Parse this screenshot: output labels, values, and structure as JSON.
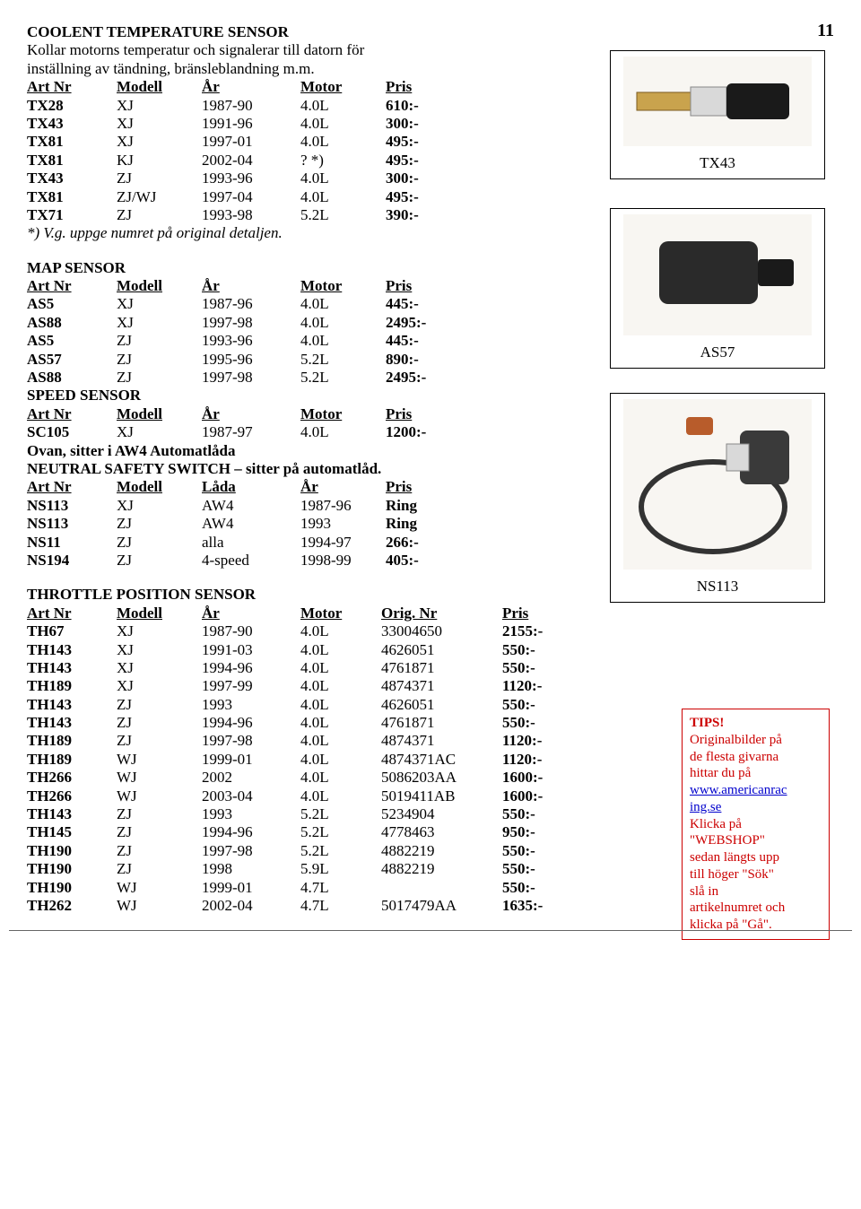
{
  "page_number": "11",
  "section1": {
    "title": "COOLENT TEMPERATURE SENSOR",
    "desc1": "Kollar motorns temperatur och signalerar till datorn för",
    "desc2": "inställning av tändning, bränsleblandning m.m.",
    "headers": {
      "c0": "Art Nr",
      "c1": "Modell",
      "c2": "År",
      "c3": "Motor",
      "c4": "Pris"
    },
    "rows": [
      {
        "c0": "TX28",
        "c1": "XJ",
        "c2": "1987-90",
        "c3": "4.0L",
        "c4": "610:-"
      },
      {
        "c0": "TX43",
        "c1": "XJ",
        "c2": "1991-96",
        "c3": "4.0L",
        "c4": "300:-"
      },
      {
        "c0": "TX81",
        "c1": "XJ",
        "c2": "1997-01",
        "c3": "4.0L",
        "c4": "495:-"
      },
      {
        "c0": "TX81",
        "c1": "KJ",
        "c2": "2002-04",
        "c3": "? *)",
        "c4": "495:-"
      },
      {
        "c0": "TX43",
        "c1": "ZJ",
        "c2": "1993-96",
        "c3": "4.0L",
        "c4": "300:-"
      },
      {
        "c0": "TX81",
        "c1": "ZJ/WJ",
        "c2": "1997-04",
        "c3": "4.0L",
        "c4": "495:-"
      },
      {
        "c0": "TX71",
        "c1": "ZJ",
        "c2": "1993-98",
        "c3": "5.2L",
        "c4": "390:-"
      }
    ],
    "footnote": "*) V.g. uppge numret på original detaljen."
  },
  "section2": {
    "title": "MAP SENSOR",
    "headers": {
      "c0": "Art Nr",
      "c1": "Modell",
      "c2": "År",
      "c3": "Motor",
      "c4": "Pris"
    },
    "rows": [
      {
        "c0": "AS5",
        "c1": "XJ",
        "c2": "1987-96",
        "c3": "4.0L",
        "c4": "445:-"
      },
      {
        "c0": "AS88",
        "c1": "XJ",
        "c2": "1997-98",
        "c3": "4.0L",
        "c4": "2495:-"
      },
      {
        "c0": "AS5",
        "c1": "ZJ",
        "c2": "1993-96",
        "c3": "4.0L",
        "c4": "445:-"
      },
      {
        "c0": "AS57",
        "c1": "ZJ",
        "c2": "1995-96",
        "c3": "5.2L",
        "c4": "890:-"
      },
      {
        "c0": "AS88",
        "c1": "ZJ",
        "c2": "1997-98",
        "c3": "5.2L",
        "c4": "2495:-"
      }
    ]
  },
  "section3": {
    "title": "SPEED SENSOR",
    "headers": {
      "c0": "Art Nr",
      "c1": "Modell",
      "c2": "År",
      "c3": "Motor",
      "c4": "Pris"
    },
    "rows": [
      {
        "c0": "SC105",
        "c1": "XJ",
        "c2": "1987-97",
        "c3": "4.0L",
        "c4": "1200:-"
      }
    ],
    "note": "Ovan, sitter i AW4 Automatlåda"
  },
  "section4": {
    "title": "NEUTRAL SAFETY SWITCH – sitter på automatlåd.",
    "headers": {
      "c0": "Art Nr",
      "c1": "Modell",
      "c2": "Låda",
      "c3": "År",
      "c4": "Pris"
    },
    "rows": [
      {
        "c0": "NS113",
        "c1": "XJ",
        "c2": "AW4",
        "c3": "1987-96",
        "c4": "Ring"
      },
      {
        "c0": "NS113",
        "c1": "ZJ",
        "c2": "AW4",
        "c3": "1993",
        "c4": "Ring"
      },
      {
        "c0": "NS11",
        "c1": "ZJ",
        "c2": "alla",
        "c3": "1994-97",
        "c4": "266:-"
      },
      {
        "c0": "NS194",
        "c1": "ZJ",
        "c2": "4-speed",
        "c3": "1998-99",
        "c4": "405:-"
      }
    ]
  },
  "section5": {
    "title": "THROTTLE POSITION SENSOR",
    "headers": {
      "c0": "Art Nr",
      "c1": "Modell",
      "c2": "År",
      "c3": "Motor",
      "c4": "Orig. Nr",
      "c5": "Pris"
    },
    "rows": [
      {
        "c0": "TH67",
        "c1": "XJ",
        "c2": "1987-90",
        "c3": "4.0L",
        "c4": "33004650",
        "c5": "2155:-"
      },
      {
        "c0": "TH143",
        "c1": "XJ",
        "c2": "1991-03",
        "c3": "4.0L",
        "c4": "4626051",
        "c5": "550:-"
      },
      {
        "c0": "TH143",
        "c1": "XJ",
        "c2": "1994-96",
        "c3": "4.0L",
        "c4": "4761871",
        "c5": "550:-"
      },
      {
        "c0": "TH189",
        "c1": "XJ",
        "c2": "1997-99",
        "c3": "4.0L",
        "c4": "4874371",
        "c5": "1120:-"
      },
      {
        "c0": "TH143",
        "c1": "ZJ",
        "c2": "1993",
        "c3": "4.0L",
        "c4": "4626051",
        "c5": "550:-"
      },
      {
        "c0": "TH143",
        "c1": "ZJ",
        "c2": "1994-96",
        "c3": "4.0L",
        "c4": "4761871",
        "c5": "550:-"
      },
      {
        "c0": "TH189",
        "c1": "ZJ",
        "c2": "1997-98",
        "c3": "4.0L",
        "c4": "4874371",
        "c5": "1120:-"
      },
      {
        "c0": "TH189",
        "c1": "WJ",
        "c2": "1999-01",
        "c3": "4.0L",
        "c4": "4874371AC",
        "c5": "1120:-"
      },
      {
        "c0": "TH266",
        "c1": "WJ",
        "c2": "2002",
        "c3": "4.0L",
        "c4": "5086203AA",
        "c5": "1600:-"
      },
      {
        "c0": "TH266",
        "c1": "WJ",
        "c2": "2003-04",
        "c3": "4.0L",
        "c4": "5019411AB",
        "c5": "1600:-"
      },
      {
        "c0": "TH143",
        "c1": "ZJ",
        "c2": "1993",
        "c3": "5.2L",
        "c4": "5234904",
        "c5": "550:-"
      },
      {
        "c0": "TH145",
        "c1": "ZJ",
        "c2": "1994-96",
        "c3": "5.2L",
        "c4": "4778463",
        "c5": "950:-"
      },
      {
        "c0": "TH190",
        "c1": "ZJ",
        "c2": "1997-98",
        "c3": "5.2L",
        "c4": "4882219",
        "c5": "550:-"
      },
      {
        "c0": "TH190",
        "c1": "ZJ",
        "c2": "1998",
        "c3": "5.9L",
        "c4": "4882219",
        "c5": "550:-"
      },
      {
        "c0": "TH190",
        "c1": "WJ",
        "c2": "1999-01",
        "c3": "4.7L",
        "c4": "",
        "c5": "550:-"
      },
      {
        "c0": "TH262",
        "c1": "WJ",
        "c2": "2002-04",
        "c3": "4.7L",
        "c4": "5017479AA",
        "c5": "1635:-"
      }
    ]
  },
  "side": {
    "label1": "TX43",
    "label2": "AS57",
    "label3": "NS113"
  },
  "tips": {
    "title": "TIPS!",
    "l1": "Originalbilder  på",
    "l2": "de flesta givarna",
    "l3": "hittar du på",
    "link1": "www.americanrac",
    "link2": "ing.se",
    "l4": "Klicka på",
    "l5": "\"WEBSHOP\"",
    "l6": "sedan längts upp",
    "l7": "till höger \"Sök\"",
    "l8": "slå in",
    "l9": "artikelnumret och",
    "l10": "klicka på \"Gå\"."
  },
  "colwidths5": {
    "c0": 100,
    "c1": 95,
    "c2": 110,
    "c3": 95,
    "c4": 85
  },
  "colwidths6": {
    "c0": 100,
    "c1": 95,
    "c2": 110,
    "c3": 90,
    "c4": 135,
    "c5": 70
  }
}
